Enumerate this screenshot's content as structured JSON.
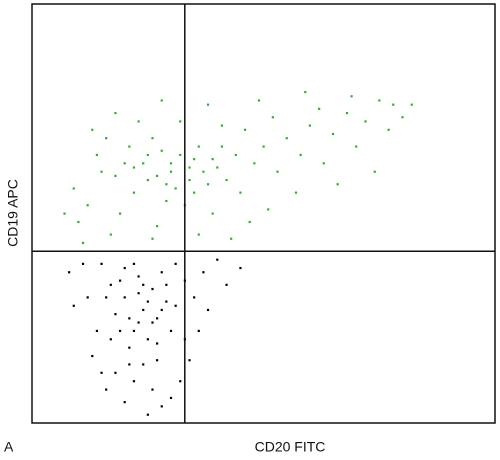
{
  "chart_data": {
    "type": "scatter",
    "panel_label": "A",
    "x_label": "CD20 FITC",
    "y_label": "CD19 APC",
    "xlim": [
      0,
      100
    ],
    "ylim": [
      0,
      100
    ],
    "quadrant_lines": {
      "x": 33,
      "y": 41
    },
    "series": [
      {
        "color": "#2fae2f",
        "x": [
          20,
          25,
          30,
          35,
          38,
          28,
          22,
          40,
          33,
          18,
          26,
          36,
          42,
          31,
          24,
          29,
          37,
          44,
          21,
          34,
          15,
          12,
          10,
          16,
          19,
          27,
          39,
          45,
          48,
          50,
          46,
          41,
          32,
          23,
          14,
          9,
          53,
          55,
          52,
          58,
          60,
          62,
          65,
          68,
          72,
          75,
          78,
          70,
          63,
          57,
          47,
          36,
          26,
          17,
          11,
          43,
          51,
          66,
          74,
          80,
          82,
          77,
          69,
          59,
          49,
          38,
          28,
          18,
          13,
          7,
          30,
          34,
          27,
          32,
          39,
          25,
          35,
          29,
          41,
          22
        ],
        "values": [
          62,
          58,
          60,
          63,
          57,
          65,
          55,
          61,
          52,
          59,
          68,
          66,
          58,
          56,
          62,
          53,
          60,
          64,
          66,
          58,
          60,
          52,
          48,
          68,
          50,
          47,
          50,
          55,
          62,
          66,
          70,
          71,
          72,
          72,
          64,
          56,
          60,
          68,
          73,
          64,
          71,
          75,
          69,
          74,
          72,
          77,
          76,
          66,
          62,
          55,
          48,
          45,
          44,
          45,
          43,
          44,
          51,
          57,
          60,
          73,
          76,
          70,
          78,
          79,
          77,
          76,
          77,
          74,
          70,
          50,
          62,
          61,
          59,
          64,
          63,
          64,
          55,
          57,
          66,
          61
        ]
      },
      {
        "color": "#000000",
        "x": [
          24,
          20,
          27,
          22,
          26,
          18,
          29,
          23,
          21,
          25,
          19,
          28,
          16,
          30,
          24,
          22,
          26,
          20,
          28,
          25,
          14,
          12,
          11,
          15,
          31,
          33,
          35,
          37,
          40,
          42,
          34,
          32,
          30,
          18,
          16,
          13,
          9,
          8,
          17,
          27,
          23,
          21,
          25,
          19,
          28,
          22,
          26,
          20,
          24,
          29,
          23,
          17,
          31,
          27,
          21,
          36,
          45,
          38,
          33,
          15
        ],
        "values": [
          27,
          30,
          25,
          22,
          32,
          26,
          29,
          35,
          18,
          20,
          34,
          36,
          30,
          22,
          14,
          10,
          8,
          5,
          4,
          2,
          22,
          30,
          38,
          38,
          38,
          34,
          30,
          36,
          39,
          33,
          15,
          10,
          6,
          12,
          8,
          16,
          28,
          36,
          20,
          15,
          31,
          25,
          29,
          22,
          27,
          38,
          24,
          37,
          33,
          33,
          24,
          33,
          28,
          19,
          14,
          22,
          37,
          27,
          20,
          12
        ]
      }
    ]
  }
}
